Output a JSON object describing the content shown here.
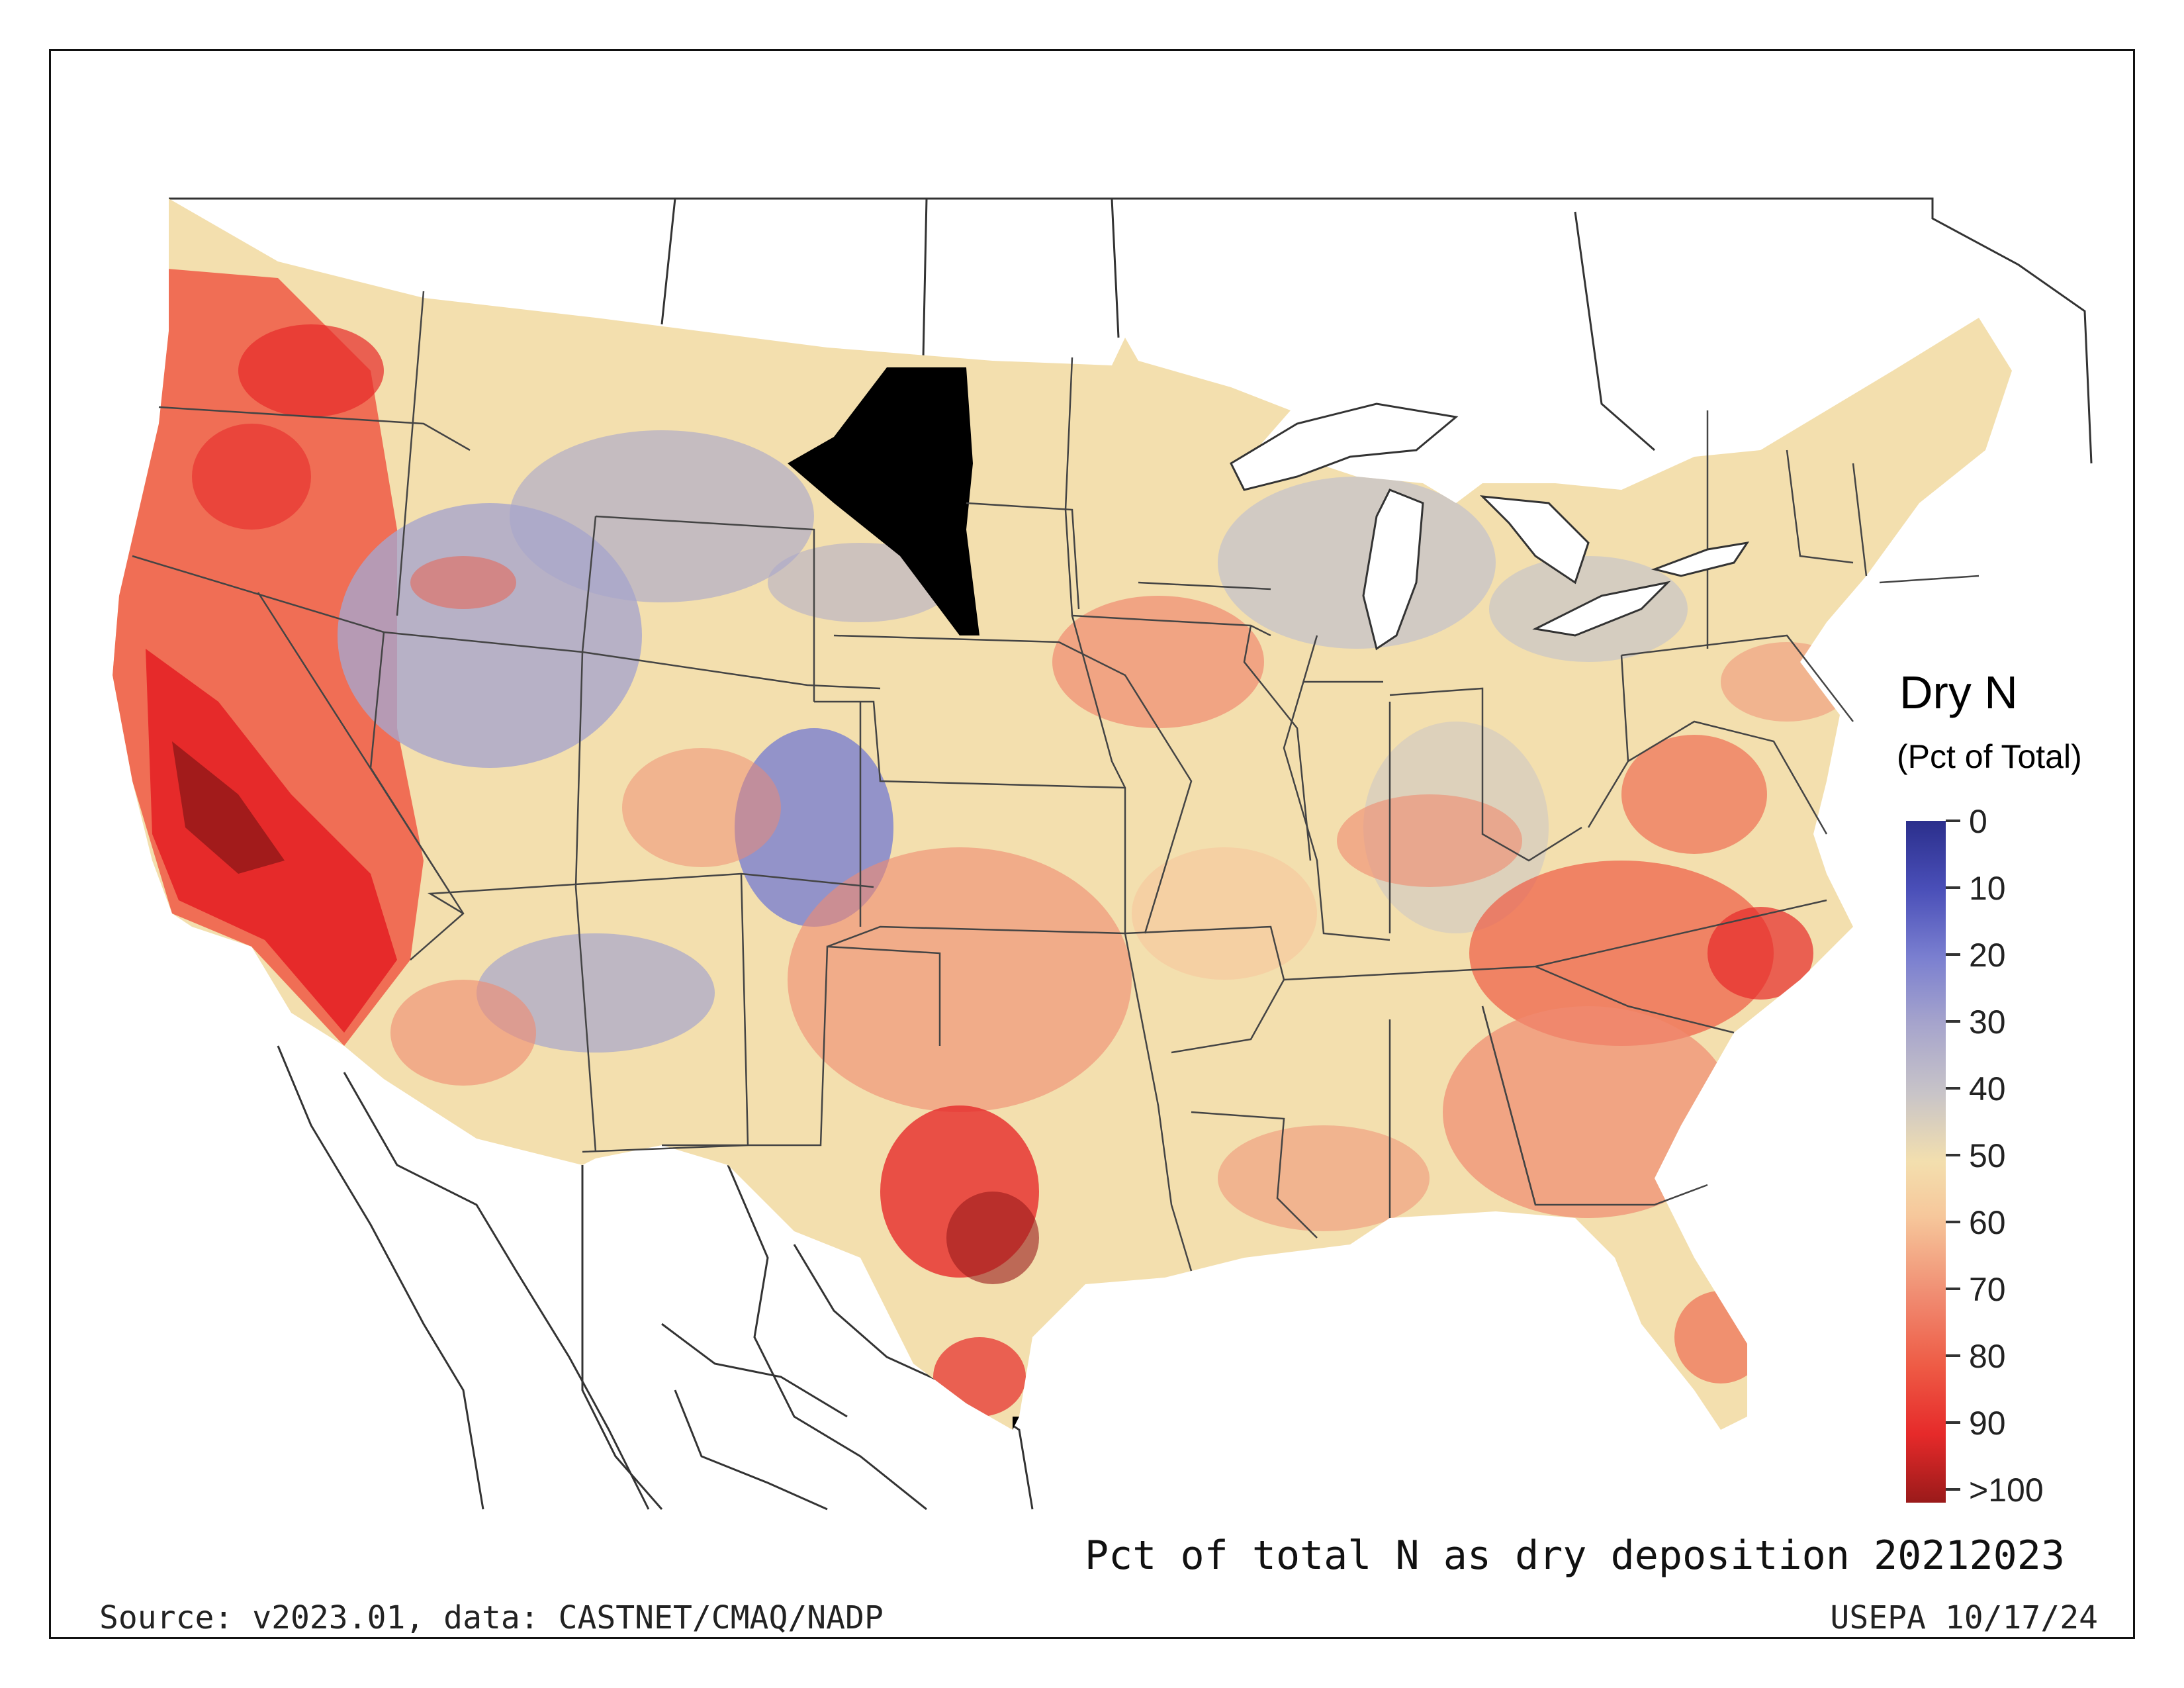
{
  "map": {
    "title": "Pct of total N as dry deposition 20212023",
    "source": "Source: v2023.01, data: CASTNET/CMAQ/NADP",
    "stamp": "USEPA 10/17/24"
  },
  "legend": {
    "title": "Dry N",
    "subtitle": "(Pct of Total)",
    "ticks": [
      "0",
      "10",
      "20",
      "30",
      "40",
      "50",
      "60",
      "70",
      "80",
      "90",
      ">100"
    ],
    "colors": {
      "low": "#2b2f8c",
      "mid_low": "#7a7fd0",
      "mid": "#c8c4c8",
      "neutral": "#f3dfae",
      "mid_high": "#f08a70",
      "high": "#e62a2a",
      "max": "#9a1a1a"
    }
  }
}
